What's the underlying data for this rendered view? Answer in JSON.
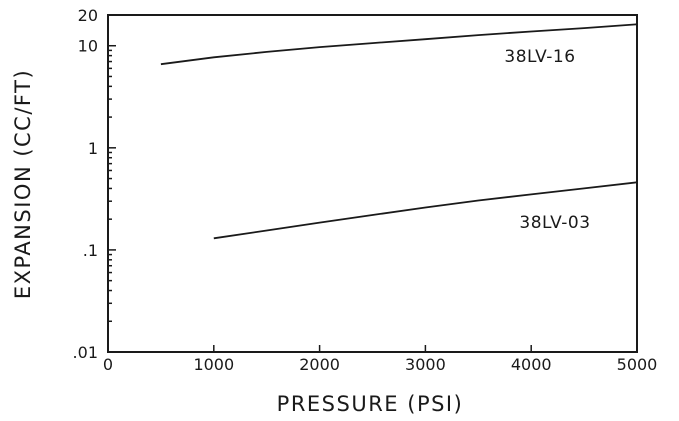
{
  "chart_data": {
    "type": "line",
    "title": "",
    "xlabel": "PRESSURE  (PSI)",
    "ylabel": "EXPANSION  (CC/FT)",
    "x_scale": "linear",
    "y_scale": "log",
    "xlim": [
      0,
      5000
    ],
    "ylim": [
      0.01,
      20
    ],
    "x_ticks": [
      {
        "value": 0,
        "label": "0"
      },
      {
        "value": 1000,
        "label": "1000"
      },
      {
        "value": 2000,
        "label": "2000"
      },
      {
        "value": 3000,
        "label": "3000"
      },
      {
        "value": 4000,
        "label": "4000"
      },
      {
        "value": 5000,
        "label": "5000"
      }
    ],
    "y_ticks": [
      {
        "value": 0.01,
        "label": ".01"
      },
      {
        "value": 0.1,
        "label": ".1"
      },
      {
        "value": 1,
        "label": "1"
      },
      {
        "value": 10,
        "label": "10"
      },
      {
        "value": 20,
        "label": "20"
      }
    ],
    "grid": false,
    "legend": "none",
    "series": [
      {
        "name": "38LV-16",
        "x": [
          500,
          1000,
          1500,
          2000,
          2500,
          3000,
          3500,
          4000,
          4500,
          5000
        ],
        "y": [
          6.6,
          7.7,
          8.7,
          9.7,
          10.6,
          11.6,
          12.7,
          13.8,
          14.9,
          16.2
        ]
      },
      {
        "name": "38LV-03",
        "x": [
          1000,
          1500,
          2000,
          2500,
          3000,
          3500,
          4000,
          4500,
          5000
        ],
        "y": [
          0.13,
          0.155,
          0.185,
          0.22,
          0.26,
          0.305,
          0.35,
          0.4,
          0.46
        ]
      }
    ]
  }
}
